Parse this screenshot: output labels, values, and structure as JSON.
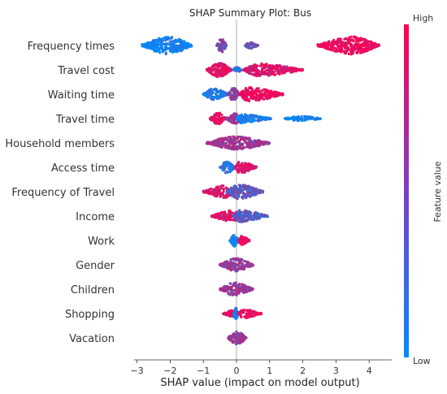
{
  "chart_data": {
    "type": "scatter",
    "subtype": "shap-beeswarm",
    "title": "SHAP Summary Plot: Bus",
    "xlabel": "SHAP value (impact on model output)",
    "xlim": [
      -3.3,
      4.75
    ],
    "xticks": [
      -3,
      -2,
      -1,
      0,
      1,
      2,
      3,
      4
    ],
    "colorbar": {
      "label": "Feature value",
      "high_label": "High",
      "low_label": "Low",
      "low_color": "#008bfb",
      "high_color": "#ff0052"
    },
    "grid": false,
    "features": [
      {
        "name": "Frequency times",
        "clusters": [
          {
            "lo": -2.85,
            "hi": -1.35,
            "peak": -2.05,
            "density": 1.0,
            "color": 0.05
          },
          {
            "lo": -0.6,
            "hi": -0.3,
            "peak": -0.45,
            "density": 0.8,
            "color": 0.45
          },
          {
            "lo": 0.25,
            "hi": 0.65,
            "peak": 0.4,
            "density": 0.2,
            "color": 0.4
          },
          {
            "lo": 2.45,
            "hi": 4.3,
            "peak": 3.5,
            "density": 1.0,
            "color": 0.95
          }
        ]
      },
      {
        "name": "Travel cost",
        "clusters": [
          {
            "lo": -0.9,
            "hi": -0.15,
            "peak": -0.55,
            "density": 0.8,
            "color": 0.9
          },
          {
            "lo": 0.2,
            "hi": 2.0,
            "peak": 0.65,
            "density": 0.65,
            "color": 0.85
          },
          {
            "lo": -0.1,
            "hi": 0.15,
            "peak": 0.0,
            "density": 0.2,
            "color": 0.15
          }
        ]
      },
      {
        "name": "Waiting time",
        "clusters": [
          {
            "lo": -1.0,
            "hi": -0.25,
            "peak": -0.7,
            "density": 0.6,
            "color": 0.15
          },
          {
            "lo": -0.25,
            "hi": 0.1,
            "peak": -0.1,
            "density": 0.7,
            "color": 0.55
          },
          {
            "lo": 0.1,
            "hi": 1.4,
            "peak": 0.35,
            "density": 0.8,
            "color": 0.95
          }
        ]
      },
      {
        "name": "Travel time",
        "clusters": [
          {
            "lo": -0.8,
            "hi": -0.3,
            "peak": -0.55,
            "density": 0.6,
            "color": 0.9
          },
          {
            "lo": -0.3,
            "hi": 0.2,
            "peak": -0.05,
            "density": 0.5,
            "color": 0.6
          },
          {
            "lo": 0.0,
            "hi": 1.05,
            "peak": 0.1,
            "density": 0.4,
            "color": 0.08
          },
          {
            "lo": 1.45,
            "hi": 2.55,
            "peak": 1.9,
            "density": 0.15,
            "color": 0.05
          }
        ]
      },
      {
        "name": "Household members",
        "clusters": [
          {
            "lo": -0.9,
            "hi": 1.0,
            "peak": -0.05,
            "density": 0.7,
            "color": 0.6
          }
        ]
      },
      {
        "name": "Access time",
        "clusters": [
          {
            "lo": -0.5,
            "hi": -0.05,
            "peak": -0.3,
            "density": 0.6,
            "color": 0.15
          },
          {
            "lo": -0.05,
            "hi": 0.6,
            "peak": 0.1,
            "density": 0.6,
            "color": 0.85
          }
        ]
      },
      {
        "name": "Frequency of Travel",
        "clusters": [
          {
            "lo": -1.0,
            "hi": 0.0,
            "peak": -0.3,
            "density": 0.65,
            "color": 0.85
          },
          {
            "lo": -0.3,
            "hi": 0.8,
            "peak": 0.05,
            "density": 0.8,
            "color": 0.35
          }
        ]
      },
      {
        "name": "Income",
        "clusters": [
          {
            "lo": -0.75,
            "hi": 0.2,
            "peak": -0.1,
            "density": 0.6,
            "color": 0.85
          },
          {
            "lo": -0.1,
            "hi": 0.95,
            "peak": 0.1,
            "density": 0.6,
            "color": 0.3
          }
        ]
      },
      {
        "name": "Work",
        "clusters": [
          {
            "lo": -0.2,
            "hi": 0.05,
            "peak": -0.05,
            "density": 0.6,
            "color": 0.05
          },
          {
            "lo": 0.05,
            "hi": 0.4,
            "peak": 0.15,
            "density": 0.4,
            "color": 0.95
          }
        ]
      },
      {
        "name": "Gender",
        "clusters": [
          {
            "lo": -0.5,
            "hi": 0.5,
            "peak": 0.0,
            "density": 0.7,
            "color": 0.6
          }
        ]
      },
      {
        "name": "Children",
        "clusters": [
          {
            "lo": -0.5,
            "hi": 0.5,
            "peak": -0.05,
            "density": 0.7,
            "color": 0.6
          }
        ]
      },
      {
        "name": "Shopping",
        "clusters": [
          {
            "lo": -0.4,
            "hi": 0.05,
            "peak": -0.05,
            "density": 0.3,
            "color": 0.9
          },
          {
            "lo": -0.1,
            "hi": 0.05,
            "peak": -0.02,
            "density": 0.6,
            "color": 0.05
          },
          {
            "lo": 0.05,
            "hi": 0.75,
            "peak": 0.2,
            "density": 0.4,
            "color": 0.95
          }
        ]
      },
      {
        "name": "Vacation",
        "clusters": [
          {
            "lo": -0.25,
            "hi": 0.3,
            "peak": 0.0,
            "density": 0.7,
            "color": 0.6
          }
        ]
      }
    ]
  }
}
